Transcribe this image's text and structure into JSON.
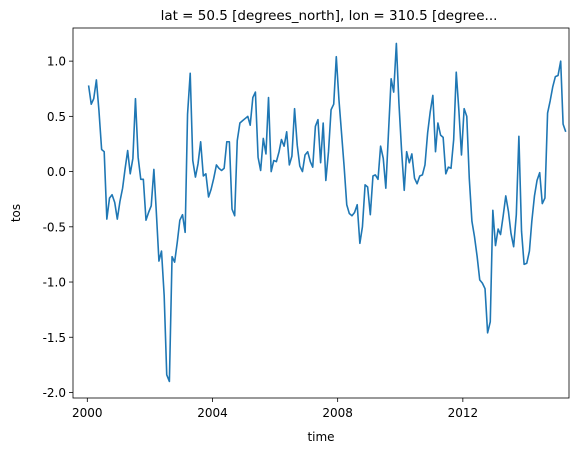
{
  "chart_data": {
    "type": "line",
    "title": "lat = 50.5 [degrees_north], lon = 310.5 [degree...",
    "xlabel": "time",
    "ylabel": "tos",
    "xlim": [
      "1999-07-18",
      "2015-05-24"
    ],
    "ylim": [
      -2.05,
      1.3
    ],
    "xticks": [
      "2000",
      "2004",
      "2008",
      "2012"
    ],
    "yticks": [
      "1.0",
      "0.5",
      "0.0",
      "-0.5",
      "-1.0",
      "-1.5",
      "-2.0"
    ],
    "grid": false,
    "line_color": "#1f77b4",
    "series": [
      {
        "start": "2000-01",
        "frequency": "monthly",
        "values": [
          0.78,
          0.61,
          0.66,
          0.83,
          0.55,
          0.2,
          0.18,
          -0.43,
          -0.24,
          -0.21,
          -0.28,
          -0.43,
          -0.27,
          -0.15,
          0.02,
          0.19,
          -0.02,
          0.12,
          0.66,
          0.13,
          -0.07,
          -0.07,
          -0.44,
          -0.37,
          -0.31,
          0.02,
          -0.36,
          -0.81,
          -0.72,
          -1.12,
          -1.84,
          -1.9,
          -0.77,
          -0.82,
          -0.64,
          -0.44,
          -0.39,
          -0.55,
          0.52,
          0.89,
          0.1,
          -0.05,
          0.07,
          0.27,
          -0.04,
          -0.02,
          -0.23,
          -0.16,
          -0.06,
          0.06,
          0.03,
          0.01,
          0.03,
          0.27,
          0.27,
          -0.34,
          -0.4,
          0.28,
          0.44,
          0.46,
          0.48,
          0.5,
          0.42,
          0.67,
          0.72,
          0.13,
          0.01,
          0.3,
          0.16,
          0.67,
          0.0,
          0.1,
          0.09,
          0.18,
          0.29,
          0.23,
          0.36,
          0.06,
          0.14,
          0.57,
          0.24,
          0.05,
          0.0,
          0.15,
          0.18,
          0.09,
          0.04,
          0.41,
          0.47,
          0.08,
          0.44,
          -0.08,
          0.18,
          0.56,
          0.61,
          1.04,
          0.65,
          0.34,
          0.05,
          -0.3,
          -0.38,
          -0.4,
          -0.37,
          -0.3,
          -0.65,
          -0.5,
          -0.12,
          -0.14,
          -0.39,
          -0.04,
          -0.03,
          -0.07,
          0.23,
          0.12,
          -0.15,
          0.35,
          0.84,
          0.72,
          1.16,
          0.62,
          0.19,
          -0.17,
          0.18,
          0.08,
          0.16,
          -0.06,
          -0.11,
          -0.04,
          -0.03,
          0.06,
          0.35,
          0.54,
          0.69,
          0.18,
          0.44,
          0.33,
          0.31,
          -0.02,
          0.04,
          0.03,
          0.29,
          0.9,
          0.55,
          0.15,
          0.57,
          0.5,
          -0.06,
          -0.45,
          -0.59,
          -0.77,
          -0.98,
          -1.01,
          -1.06,
          -1.46,
          -1.36,
          -0.35,
          -0.67,
          -0.52,
          -0.57,
          -0.4,
          -0.22,
          -0.36,
          -0.56,
          -0.68,
          -0.39,
          0.32,
          -0.54,
          -0.84,
          -0.83,
          -0.72,
          -0.45,
          -0.22,
          -0.08,
          -0.01,
          -0.29,
          -0.24,
          0.53,
          0.64,
          0.77,
          0.86,
          0.87,
          1.0,
          0.43,
          0.36
        ]
      }
    ]
  }
}
